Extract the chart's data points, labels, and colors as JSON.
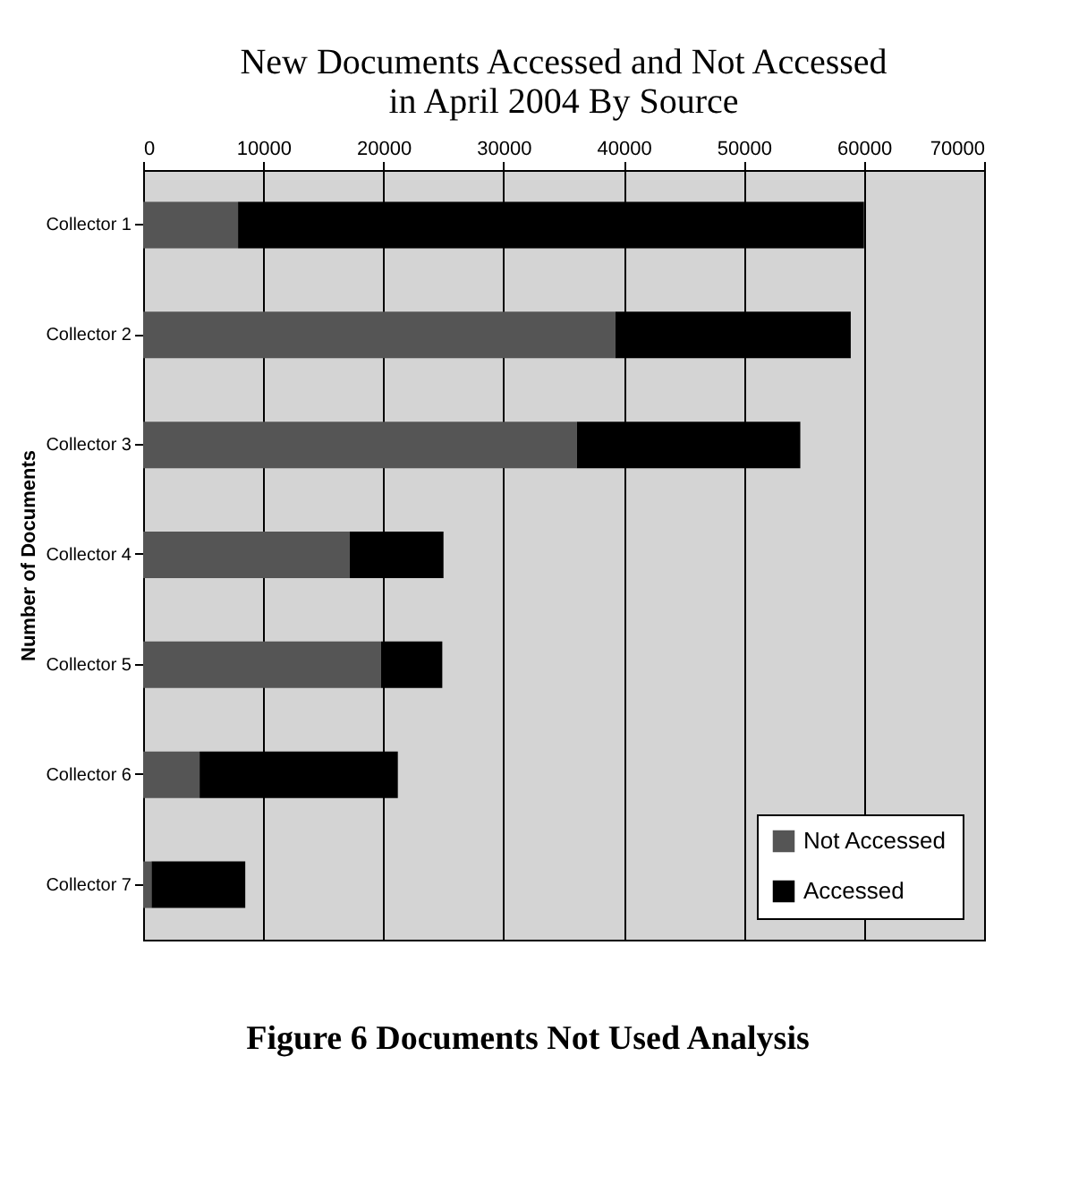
{
  "chart_data": {
    "type": "bar",
    "orientation": "horizontal",
    "stacked": true,
    "title": "New Documents Accessed and Not Accessed\nin April 2004 By Source",
    "ylabel": "Number of Documents",
    "annotations": [
      "Figure 6 Documents Not Used Analysis"
    ],
    "categories": [
      "Collector 1",
      "Collector 2",
      "Collector 3",
      "Collector 4",
      "Collector 5",
      "Collector 6",
      "Collector 7"
    ],
    "series": [
      {
        "name": "Not Accessed",
        "color": "#555555",
        "values": [
          7900,
          39300,
          36100,
          17200,
          19800,
          4700,
          700
        ]
      },
      {
        "name": "Accessed",
        "color": "#000000",
        "values": [
          52100,
          19600,
          18600,
          7800,
          5100,
          16500,
          7800
        ]
      }
    ],
    "xlim": [
      0,
      70000
    ],
    "xticks": [
      0,
      10000,
      20000,
      30000,
      40000,
      50000,
      60000,
      70000
    ],
    "grid": "x",
    "legend": "bottom right"
  }
}
